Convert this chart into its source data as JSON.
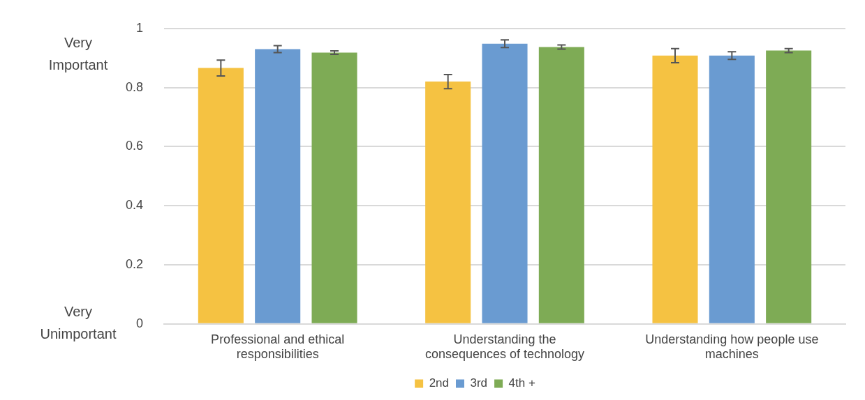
{
  "chart_data": {
    "type": "bar",
    "categories": [
      "Professional and ethical responsibilities",
      "Understanding the consequences of technology",
      "Understanding how people use machines"
    ],
    "series": [
      {
        "name": "2nd",
        "color": "#f5c242",
        "values": [
          0.866,
          0.82,
          0.908
        ],
        "errors": [
          0.027,
          0.024,
          0.024
        ]
      },
      {
        "name": "3rd",
        "color": "#6a9bd1",
        "values": [
          0.93,
          0.948,
          0.908
        ],
        "errors": [
          0.012,
          0.013,
          0.013
        ]
      },
      {
        "name": "4th +",
        "color": "#7eab55",
        "values": [
          0.918,
          0.937,
          0.925
        ],
        "errors": [
          0.006,
          0.007,
          0.007
        ]
      }
    ],
    "ylim": [
      0,
      1
    ],
    "yticks": [
      0,
      0.2,
      0.4,
      0.6,
      0.8,
      1
    ],
    "grid": "y",
    "legend": "bottom",
    "annotations": [
      "Very Important",
      "Very Unimportant"
    ]
  }
}
